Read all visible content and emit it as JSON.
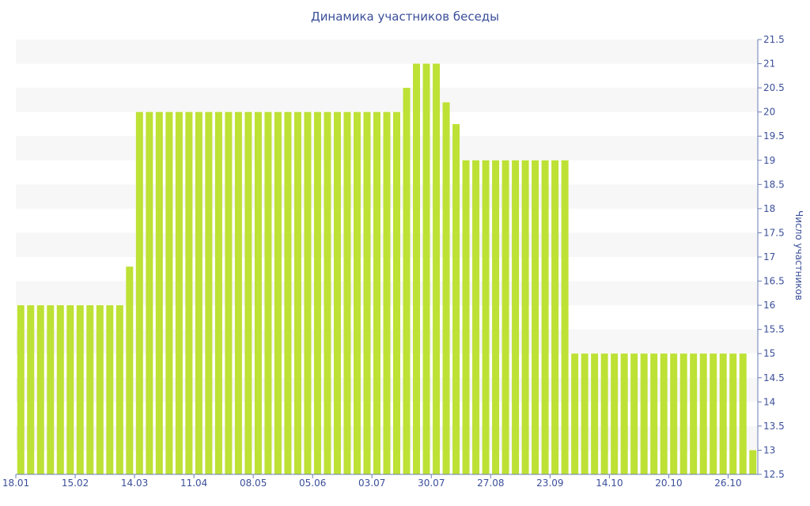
{
  "colors": {
    "bar": "#bde135",
    "band": "#f7f7f7",
    "axis": "#6b7db3",
    "text": "#3b4f9a"
  },
  "chart_data": {
    "type": "bar",
    "title": "Динамика участников беседы",
    "xlabel": "",
    "ylabel": "Число участников",
    "y_axis_side": "right",
    "ylim": [
      12.5,
      21.5
    ],
    "y_ticks": [
      "12.5",
      "13",
      "13.5",
      "14",
      "14.5",
      "15",
      "15.5",
      "16",
      "16.5",
      "17",
      "17.5",
      "18",
      "18.5",
      "19",
      "19.5",
      "20",
      "20.5",
      "21",
      "21.5"
    ],
    "x_tick_labels": [
      "18.01",
      "15.02",
      "14.03",
      "11.04",
      "08.05",
      "05.06",
      "03.07",
      "30.07",
      "27.08",
      "23.09",
      "14.10",
      "20.10",
      "26.10"
    ],
    "x_tick_bar_index": [
      0,
      6,
      12,
      18,
      24,
      30,
      36,
      42,
      48,
      54,
      60,
      66,
      72
    ],
    "grid": "alternating horizontal bands",
    "legend": "none",
    "values": [
      16,
      16,
      16,
      16,
      16,
      16,
      16,
      16,
      16,
      16,
      16,
      16.8,
      20,
      20,
      20,
      20,
      20,
      20,
      20,
      20,
      20,
      20,
      20,
      20,
      20,
      20,
      20,
      20,
      20,
      20,
      20,
      20,
      20,
      20,
      20,
      20,
      20,
      20,
      20,
      20.5,
      21,
      21,
      21,
      20.2,
      19.75,
      19,
      19,
      19,
      19,
      19,
      19,
      19,
      19,
      19,
      19,
      19,
      15,
      15,
      15,
      15,
      15,
      15,
      15,
      15,
      15,
      15,
      15,
      15,
      15,
      15,
      15,
      15,
      15,
      15,
      13
    ]
  }
}
